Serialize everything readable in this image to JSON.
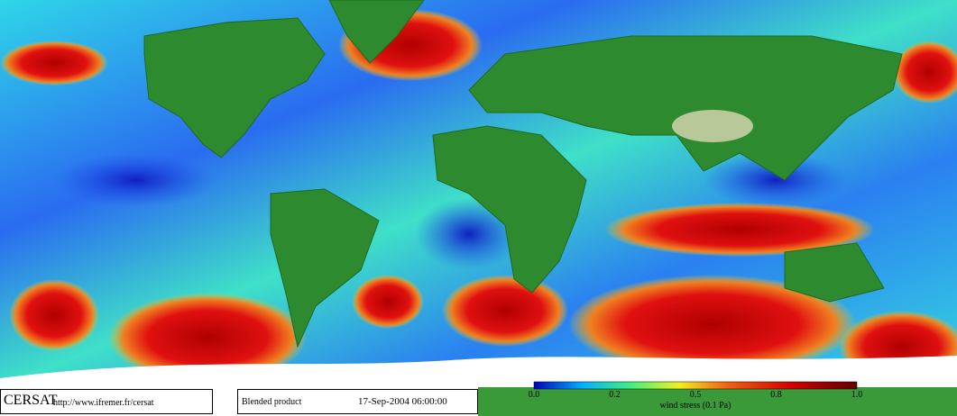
{
  "footer": {
    "logo": "CERSAT",
    "url": "http://www.ifremer.fr/cersat",
    "product": "Blended product",
    "date": "17-Sep-2004 06:00:00"
  },
  "colorbar": {
    "ticks": [
      "0.0",
      "0.2",
      "0.5",
      "0.8",
      "1.0"
    ],
    "label": "wind stress (0.1 Pa)"
  }
}
